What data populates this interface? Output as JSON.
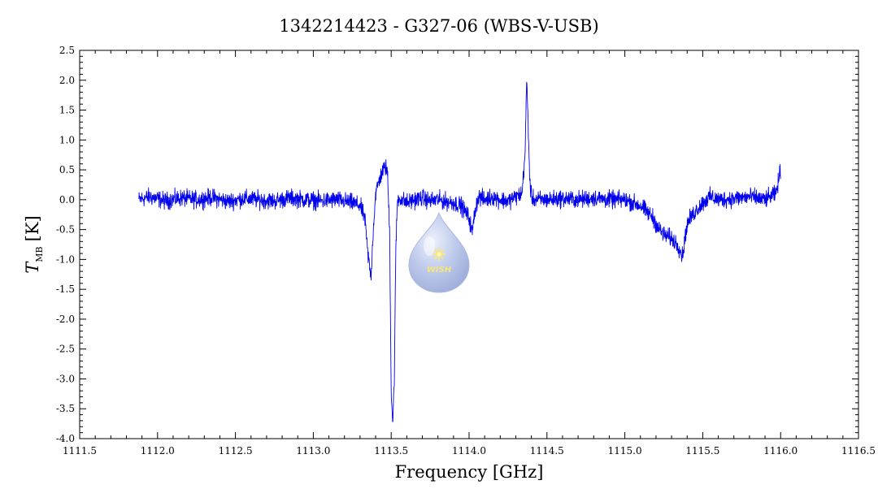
{
  "chart_data": {
    "type": "line",
    "title": "1342214423 - G327-06 (WBS-V-USB)",
    "xlabel": "Frequency [GHz]",
    "ylabel": {
      "main": "T",
      "subscript": "MB",
      "unit": "[K]"
    },
    "xlim": [
      1111.5,
      1116.5
    ],
    "ylim": [
      -4.0,
      2.5
    ],
    "xticks": [
      "1111.5",
      "1112.0",
      "1112.5",
      "1113.0",
      "1113.5",
      "1114.0",
      "1114.5",
      "1115.0",
      "1115.5",
      "1116.0",
      "1116.5"
    ],
    "yticks": [
      "2.5",
      "2.0",
      "1.5",
      "1.0",
      "0.5",
      "0.0",
      "-0.5",
      "-1.0",
      "-1.5",
      "-2.0",
      "-2.5",
      "-3.0",
      "-3.5",
      "-4.0"
    ],
    "series": [
      {
        "color": "#0000ee",
        "x": [
          1111.88,
          1111.95,
          1112.05,
          1112.15,
          1112.25,
          1112.35,
          1112.45,
          1112.55,
          1112.65,
          1112.75,
          1112.85,
          1112.95,
          1113.05,
          1113.15,
          1113.25,
          1113.3,
          1113.33,
          1113.35,
          1113.37,
          1113.385,
          1113.4,
          1113.42,
          1113.44,
          1113.46,
          1113.475,
          1113.49,
          1113.5,
          1113.51,
          1113.52,
          1113.53,
          1113.54,
          1113.56,
          1113.6,
          1113.65,
          1113.7,
          1113.75,
          1113.8,
          1113.85,
          1113.9,
          1113.95,
          1114.0,
          1114.02,
          1114.04,
          1114.06,
          1114.1,
          1114.15,
          1114.2,
          1114.25,
          1114.3,
          1114.34,
          1114.36,
          1114.37,
          1114.38,
          1114.39,
          1114.4,
          1114.42,
          1114.5,
          1114.6,
          1114.7,
          1114.8,
          1114.9,
          1115.0,
          1115.1,
          1115.18,
          1115.22,
          1115.26,
          1115.3,
          1115.34,
          1115.37,
          1115.4,
          1115.45,
          1115.5,
          1115.55,
          1115.6,
          1115.7,
          1115.8,
          1115.9,
          1115.97,
          1116.0
        ],
        "y": [
          0.0,
          0.05,
          -0.02,
          0.03,
          0.0,
          0.04,
          -0.03,
          0.02,
          0.0,
          -0.02,
          0.03,
          0.0,
          -0.02,
          0.0,
          -0.05,
          -0.1,
          -0.3,
          -0.9,
          -1.3,
          -0.5,
          0.1,
          0.3,
          0.45,
          0.55,
          0.5,
          -0.5,
          -3.2,
          -3.75,
          -3.0,
          -0.8,
          0.0,
          0.02,
          -0.05,
          0.0,
          0.03,
          -0.02,
          0.0,
          -0.03,
          -0.05,
          -0.1,
          -0.3,
          -0.55,
          -0.15,
          0.05,
          0.0,
          0.05,
          0.0,
          -0.02,
          0.05,
          0.1,
          0.8,
          2.05,
          1.2,
          0.3,
          0.05,
          0.0,
          0.0,
          0.02,
          0.0,
          0.03,
          0.0,
          0.0,
          -0.1,
          -0.3,
          -0.5,
          -0.6,
          -0.65,
          -0.75,
          -0.95,
          -0.4,
          -0.2,
          -0.05,
          0.05,
          0.0,
          0.02,
          0.05,
          0.0,
          0.1,
          0.5
        ],
        "noise_rms": 0.07
      }
    ]
  },
  "watermark": {
    "text": "WISH",
    "color": "#9ab0e0"
  }
}
